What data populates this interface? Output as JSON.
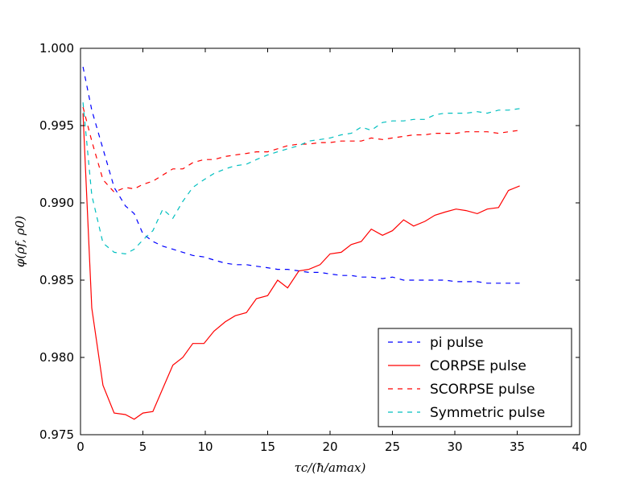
{
  "chart_data": {
    "type": "line",
    "xlabel": "τc/(ħ/amax)",
    "ylabel": "φ(ρf, ρ0)",
    "xlim": [
      0,
      40
    ],
    "ylim": [
      0.975,
      1.0
    ],
    "xticks": [
      "0",
      "5",
      "10",
      "15",
      "20",
      "25",
      "30",
      "35",
      "40"
    ],
    "yticks": [
      "0.975",
      "0.980",
      "0.985",
      "0.990",
      "0.995",
      "1.000"
    ],
    "xtick_values": [
      0,
      5,
      10,
      15,
      20,
      25,
      30,
      35,
      40
    ],
    "ytick_values": [
      0.975,
      0.98,
      0.985,
      0.99,
      0.995,
      1.0
    ],
    "grid": false,
    "legend_position": "lower-right",
    "x": [
      0.2,
      0.9,
      1.8,
      2.7,
      3.6,
      4.3,
      5.0,
      5.8,
      6.6,
      7.4,
      8.2,
      9.0,
      9.9,
      10.7,
      11.6,
      12.4,
      13.3,
      14.1,
      15.0,
      15.8,
      16.6,
      17.5,
      18.3,
      19.2,
      20.0,
      20.9,
      21.7,
      22.5,
      23.3,
      24.2,
      25.0,
      25.9,
      26.7,
      27.6,
      28.4,
      29.2,
      30.1,
      30.9,
      31.8,
      32.6,
      33.5,
      34.3,
      35.2
    ],
    "series": [
      {
        "name": "pi pulse",
        "color": "#0000ff",
        "dash": "dashed",
        "values": [
          0.9988,
          0.996,
          0.9935,
          0.991,
          0.9898,
          0.9893,
          0.988,
          0.9875,
          0.9872,
          0.987,
          0.9868,
          0.9866,
          0.9865,
          0.9863,
          0.9861,
          0.986,
          0.986,
          0.9859,
          0.9858,
          0.9857,
          0.9857,
          0.9856,
          0.9855,
          0.9855,
          0.9854,
          0.9853,
          0.9853,
          0.9852,
          0.9852,
          0.9851,
          0.9852,
          0.985,
          0.985,
          0.985,
          0.985,
          0.985,
          0.9849,
          0.9849,
          0.9849,
          0.9848,
          0.9848,
          0.9848,
          0.9848
        ]
      },
      {
        "name": "CORPSE pulse",
        "color": "#ff0000",
        "dash": "solid",
        "values": [
          0.9958,
          0.9832,
          0.9782,
          0.9764,
          0.9763,
          0.976,
          0.9764,
          0.9765,
          0.978,
          0.9795,
          0.98,
          0.9809,
          0.9809,
          0.9817,
          0.9823,
          0.9827,
          0.9829,
          0.9838,
          0.984,
          0.985,
          0.9845,
          0.9856,
          0.9857,
          0.986,
          0.9867,
          0.9868,
          0.9873,
          0.9875,
          0.9883,
          0.9879,
          0.9882,
          0.9889,
          0.9885,
          0.9888,
          0.9892,
          0.9894,
          0.9896,
          0.9895,
          0.9893,
          0.9896,
          0.9897,
          0.9908,
          0.9911
        ]
      },
      {
        "name": "SCORPSE pulse",
        "color": "#ff0000",
        "dash": "dashed",
        "values": [
          0.9962,
          0.994,
          0.9915,
          0.9907,
          0.991,
          0.9909,
          0.9912,
          0.9914,
          0.9918,
          0.9922,
          0.9922,
          0.9926,
          0.9928,
          0.9928,
          0.993,
          0.9931,
          0.9932,
          0.9933,
          0.9933,
          0.9935,
          0.9937,
          0.9938,
          0.9938,
          0.9939,
          0.9939,
          0.994,
          0.994,
          0.994,
          0.9942,
          0.9941,
          0.9942,
          0.9943,
          0.9944,
          0.9944,
          0.9945,
          0.9945,
          0.9945,
          0.9946,
          0.9946,
          0.9946,
          0.9945,
          0.9946,
          0.9947
        ]
      },
      {
        "name": "Symmetric pulse",
        "color": "#00bfbf",
        "dash": "dashed",
        "values": [
          0.9965,
          0.9905,
          0.9874,
          0.9868,
          0.9867,
          0.987,
          0.9876,
          0.9882,
          0.9896,
          0.989,
          0.9901,
          0.991,
          0.9915,
          0.9919,
          0.9922,
          0.9924,
          0.9925,
          0.9928,
          0.9931,
          0.9933,
          0.9935,
          0.9937,
          0.994,
          0.9941,
          0.9942,
          0.9944,
          0.9945,
          0.9949,
          0.9947,
          0.9952,
          0.9953,
          0.9953,
          0.9954,
          0.9954,
          0.9957,
          0.9958,
          0.9958,
          0.9958,
          0.9959,
          0.9958,
          0.996,
          0.996,
          0.9961
        ]
      }
    ]
  }
}
